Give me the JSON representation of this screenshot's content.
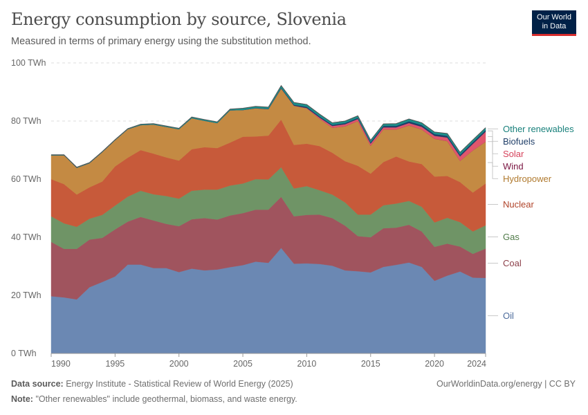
{
  "header": {
    "title": "Energy consumption by source, Slovenia",
    "subtitle": "Measured in terms of primary energy using the substitution method."
  },
  "logo": {
    "line1": "Our World",
    "line2": "in Data"
  },
  "footer": {
    "source_label": "Data source:",
    "source_text": "Energy Institute - Statistical Review of World Energy (2025)",
    "note_label": "Note:",
    "note_text": "\"Other renewables\" include geothermal, biomass, and waste energy.",
    "right_text": "OurWorldinData.org/energy | CC BY"
  },
  "chart_data": {
    "type": "area",
    "stacked": true,
    "title": "Energy consumption by source, Slovenia",
    "subtitle": "Measured in terms of primary energy using the substitution method.",
    "unit": "TWh",
    "ylim": [
      0,
      100
    ],
    "y_ticks": [
      0,
      20,
      40,
      60,
      80,
      100
    ],
    "y_tick_labels": [
      "0 TWh",
      "20 TWh",
      "40 TWh",
      "60 TWh",
      "80 TWh",
      "100 TWh"
    ],
    "xlim": [
      1990,
      2024
    ],
    "x_ticks": [
      1990,
      1995,
      2000,
      2005,
      2010,
      2015,
      2020,
      2024
    ],
    "grid": "horizontal dashed",
    "legend_position": "right",
    "x": [
      1990,
      1991,
      1992,
      1993,
      1994,
      1995,
      1996,
      1997,
      1998,
      1999,
      2000,
      2001,
      2002,
      2003,
      2004,
      2005,
      2006,
      2007,
      2008,
      2009,
      2010,
      2011,
      2012,
      2013,
      2014,
      2015,
      2016,
      2017,
      2018,
      2019,
      2020,
      2021,
      2022,
      2023,
      2024
    ],
    "series": [
      {
        "name": "Oil",
        "color": "#6b88b3",
        "values": [
          19.7,
          19.3,
          18.6,
          22.8,
          24.6,
          26.5,
          30.6,
          30.6,
          29.4,
          29.4,
          28.0,
          29.2,
          28.6,
          28.9,
          29.7,
          30.4,
          31.6,
          31.2,
          36.3,
          30.9,
          31.0,
          30.8,
          30.2,
          28.6,
          28.3,
          27.9,
          29.8,
          30.5,
          31.3,
          29.8,
          25.0,
          26.8,
          28.2,
          26.1,
          26.0
        ]
      },
      {
        "name": "Coal",
        "color": "#a0545e",
        "values": [
          18.7,
          16.7,
          17.4,
          16.4,
          15.2,
          16.2,
          14.8,
          16.4,
          16.4,
          15.2,
          15.8,
          17.0,
          18.0,
          17.2,
          17.8,
          17.9,
          17.9,
          18.3,
          17.6,
          16.3,
          16.7,
          17.0,
          16.4,
          15.4,
          12.1,
          12.1,
          13.3,
          12.8,
          13.0,
          12.2,
          11.7,
          11.0,
          8.6,
          8.2,
          10.1
        ]
      },
      {
        "name": "Gas",
        "color": "#6f9466",
        "values": [
          8.8,
          8.8,
          7.6,
          7.2,
          7.9,
          8.2,
          8.6,
          9.0,
          9.0,
          9.6,
          9.5,
          9.8,
          9.8,
          10.3,
          10.3,
          10.2,
          10.5,
          10.4,
          10.2,
          9.6,
          9.9,
          8.4,
          8.1,
          8.0,
          7.4,
          7.8,
          7.9,
          8.3,
          8.2,
          8.5,
          8.4,
          8.9,
          8.4,
          7.7,
          8.0
        ]
      },
      {
        "name": "Nuclear",
        "color": "#c75a3a",
        "values": [
          12.8,
          13.5,
          11.1,
          10.8,
          11.5,
          13.5,
          13.4,
          14.0,
          14.0,
          13.3,
          13.1,
          14.3,
          14.6,
          14.3,
          14.8,
          16.1,
          14.7,
          15.1,
          16.4,
          15.0,
          14.6,
          15.2,
          14.4,
          14.2,
          16.8,
          14.1,
          14.9,
          16.2,
          13.6,
          14.7,
          15.8,
          14.4,
          13.8,
          13.4,
          14.4
        ]
      },
      {
        "name": "Hydropower",
        "color": "#c48a43",
        "values": [
          8.2,
          9.9,
          9.2,
          8.3,
          10.1,
          9.0,
          9.8,
          8.6,
          10.0,
          10.5,
          10.8,
          10.7,
          9.1,
          8.6,
          11.1,
          9.2,
          9.7,
          9.1,
          10.7,
          13.5,
          12.2,
          9.4,
          8.6,
          12.0,
          15.4,
          9.6,
          11.2,
          9.3,
          12.4,
          11.9,
          13.0,
          12.0,
          7.3,
          14.5,
          14.4
        ]
      },
      {
        "name": "Wind",
        "color": "#8b1d4e",
        "values": [
          0,
          0,
          0,
          0,
          0,
          0,
          0,
          0,
          0,
          0,
          0,
          0,
          0,
          0,
          0,
          0,
          0,
          0,
          0,
          0,
          0,
          0,
          0,
          0.01,
          0.01,
          0.02,
          0.02,
          0.02,
          0.02,
          0.02,
          0.02,
          0.02,
          0.02,
          0.02,
          0.02
        ]
      },
      {
        "name": "Solar",
        "color": "#e0566d",
        "values": [
          0,
          0,
          0,
          0,
          0,
          0,
          0,
          0,
          0,
          0,
          0,
          0,
          0,
          0,
          0,
          0,
          0,
          0,
          0,
          0,
          0.1,
          0.4,
          0.6,
          0.7,
          0.7,
          0.7,
          0.7,
          0.7,
          0.8,
          0.9,
          1.0,
          1.2,
          1.5,
          2.2,
          3.4
        ]
      },
      {
        "name": "Biofuels",
        "color": "#1f3e68",
        "values": [
          0,
          0,
          0,
          0,
          0,
          0,
          0,
          0,
          0,
          0,
          0,
          0,
          0,
          0,
          0,
          0,
          0.05,
          0.1,
          0.2,
          0.3,
          0.4,
          0.4,
          0.4,
          0.4,
          0.4,
          0.5,
          0.5,
          0.5,
          0.6,
          0.6,
          0.6,
          0.6,
          0.6,
          0.6,
          0.6
        ]
      },
      {
        "name": "Other renewables",
        "color": "#1a8f8a",
        "values": [
          0.2,
          0.2,
          0.2,
          0.2,
          0.2,
          0.2,
          0.2,
          0.3,
          0.3,
          0.3,
          0.3,
          0.4,
          0.4,
          0.4,
          0.4,
          0.6,
          0.6,
          0.6,
          0.8,
          0.8,
          0.8,
          0.8,
          0.7,
          0.7,
          0.7,
          0.7,
          0.7,
          0.8,
          0.8,
          0.8,
          0.7,
          0.8,
          0.8,
          0.8,
          0.8
        ]
      }
    ],
    "label_colors": {
      "Oil": "#4b6a9b",
      "Coal": "#8b3e48",
      "Gas": "#4f7a48",
      "Nuclear": "#b0442a",
      "Hydropower": "#b07a2f",
      "Wind": "#7a1541",
      "Solar": "#d6415a",
      "Biofuels": "#1f3e68",
      "Other renewables": "#18807b"
    }
  }
}
